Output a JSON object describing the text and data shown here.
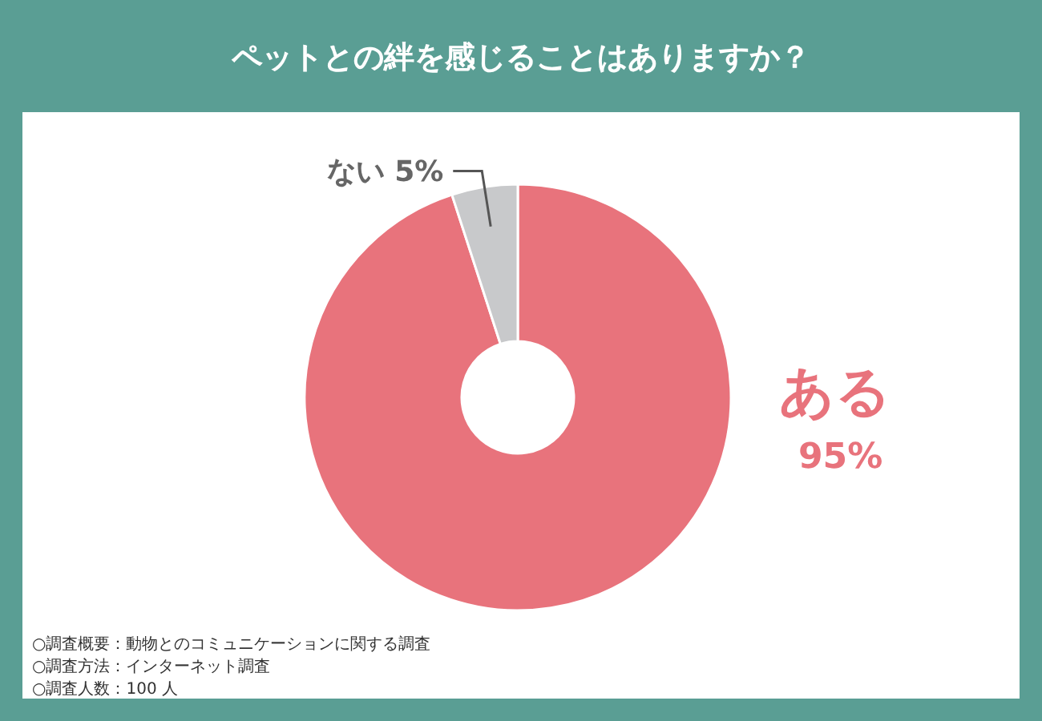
{
  "chart_data": {
    "type": "donut",
    "title": "ペットとの絆を感じることはありますか？",
    "categories": [
      "ある",
      "ない"
    ],
    "values": [
      95,
      5
    ],
    "colors": [
      "#e8737c",
      "#c8c9cb"
    ],
    "value_labels": [
      "95%",
      "5%"
    ],
    "annotations": [
      "○調査概要：動物とのコミュニケーションに関する調査",
      "○調査方法：インターネット調査",
      "○調査人数：100 人"
    ]
  }
}
